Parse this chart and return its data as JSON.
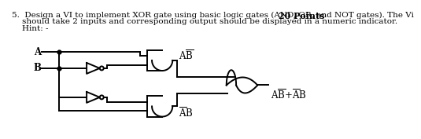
{
  "bg_color": "#ffffff",
  "line_color": "#000000",
  "line_width": 1.4,
  "font_size_body": 7.5,
  "font_size_label": 8.5,
  "font_size_points": 8.0,
  "title_line1": "5.  Design a VI to implement XOR gate using basic logic gates (AND, OR, and NOT gates). The Vi",
  "title_line2": "    should take 2 inputs and corresponding output should be displayed in a numeric indicator.",
  "title_line3": "    Hint: -",
  "points_text": "20 Points",
  "A_label": "A",
  "B_label": "B"
}
